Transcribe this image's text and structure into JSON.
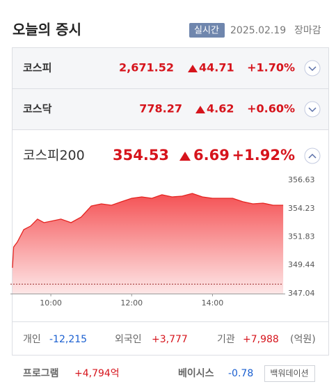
{
  "header": {
    "title": "오늘의 증시",
    "badge": "실시간",
    "date": "2025.02.19",
    "status": "장마감"
  },
  "indices": [
    {
      "name": "코스피",
      "value": "2,671.52",
      "change": "44.71",
      "rate": "+1.70%"
    },
    {
      "name": "코스닥",
      "value": "778.27",
      "change": "4.62",
      "rate": "+0.60%"
    },
    {
      "name": "코스피200",
      "value": "354.53",
      "change": "6.69",
      "rate": "+1.92%"
    }
  ],
  "chart_data": {
    "type": "line",
    "color": "#e4231f",
    "reference_line": 347.84,
    "x": [
      9.05,
      9.08,
      9.17,
      9.33,
      9.5,
      9.67,
      9.83,
      10,
      10.25,
      10.5,
      10.75,
      11,
      11.25,
      11.5,
      11.75,
      12,
      12.25,
      12.5,
      12.75,
      13,
      13.25,
      13.5,
      13.75,
      14,
      14.25,
      14.5,
      14.75,
      15,
      15.25,
      15.5,
      15.75
    ],
    "values": [
      349.22,
      350.98,
      351.4,
      352.45,
      352.75,
      353.34,
      353.04,
      353.16,
      353.34,
      353.04,
      353.51,
      354.45,
      354.63,
      354.51,
      354.81,
      355.1,
      355.22,
      355.1,
      355.4,
      355.22,
      355.28,
      355.51,
      355.22,
      355.1,
      355.1,
      355.1,
      354.81,
      354.63,
      354.69,
      354.51,
      354.51
    ],
    "xlim": [
      9,
      15.8
    ],
    "ylim": [
      347.04,
      356.63
    ],
    "xticks": [
      {
        "value": 10,
        "label": "10:00"
      },
      {
        "value": 12,
        "label": "12:00"
      },
      {
        "value": 14,
        "label": "14:00"
      }
    ],
    "yticks": [
      347.04,
      349.44,
      351.83,
      354.23,
      356.63
    ]
  },
  "investors": [
    {
      "label": "개인",
      "value": "-12,215"
    },
    {
      "label": "외국인",
      "value": "+3,777"
    },
    {
      "label": "기관",
      "value": "+7,988"
    }
  ],
  "unit": "(억원)",
  "program": {
    "label": "프로그램",
    "value": "+4,794억"
  },
  "basis": {
    "label": "베이시스",
    "value": "-0.78",
    "button": "백워데이션"
  }
}
